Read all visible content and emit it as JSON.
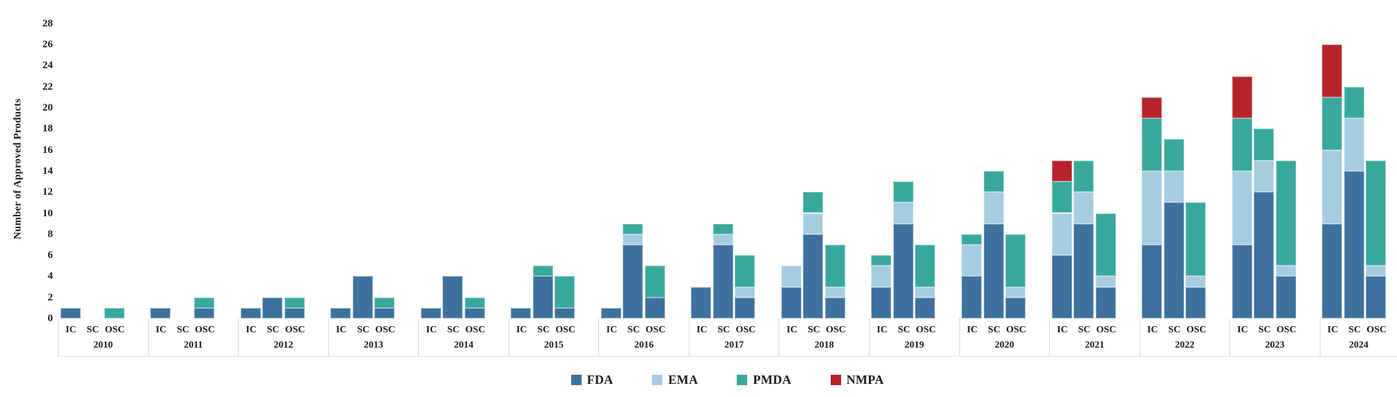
{
  "chart_data": {
    "type": "bar",
    "stacked": true,
    "grouped_by": "year",
    "title": "",
    "xlabel": "",
    "ylabel": "Number of Approved Products",
    "ylim": [
      0,
      28
    ],
    "ytick_step": 2,
    "ytick_labels": [
      "0",
      "2",
      "4",
      "6",
      "8",
      "10",
      "12",
      "14",
      "16",
      "18",
      "20",
      "22",
      "24",
      "26",
      "28"
    ],
    "grid": false,
    "legend_position": "bottom-center",
    "categories": [
      "IC",
      "SC",
      "OSC"
    ],
    "series_order_bottom_to_top": [
      "FDA",
      "EMA",
      "PMDA",
      "NMPA"
    ],
    "series": [
      {
        "name": "FDA",
        "color": "#3E719D"
      },
      {
        "name": "EMA",
        "color": "#A6CCE2"
      },
      {
        "name": "PMDA",
        "color": "#39A89C"
      },
      {
        "name": "NMPA",
        "color": "#B7232A"
      }
    ],
    "years": [
      {
        "year": "2010",
        "values": [
          [
            1,
            0,
            0,
            0
          ],
          [
            0,
            0,
            0,
            0
          ],
          [
            0,
            0,
            1,
            0
          ]
        ]
      },
      {
        "year": "2011",
        "values": [
          [
            1,
            0,
            0,
            0
          ],
          [
            0,
            0,
            0,
            0
          ],
          [
            1,
            0,
            1,
            0
          ]
        ]
      },
      {
        "year": "2012",
        "values": [
          [
            1,
            0,
            0,
            0
          ],
          [
            2,
            0,
            0,
            0
          ],
          [
            1,
            0,
            1,
            0
          ]
        ]
      },
      {
        "year": "2013",
        "values": [
          [
            1,
            0,
            0,
            0
          ],
          [
            4,
            0,
            0,
            0
          ],
          [
            1,
            0,
            1,
            0
          ]
        ]
      },
      {
        "year": "2014",
        "values": [
          [
            1,
            0,
            0,
            0
          ],
          [
            4,
            0,
            0,
            0
          ],
          [
            1,
            0,
            1,
            0
          ]
        ]
      },
      {
        "year": "2015",
        "values": [
          [
            1,
            0,
            0,
            0
          ],
          [
            4,
            0,
            1,
            0
          ],
          [
            1,
            0,
            3,
            0
          ]
        ]
      },
      {
        "year": "2016",
        "values": [
          [
            1,
            0,
            0,
            0
          ],
          [
            7,
            1,
            1,
            0
          ],
          [
            2,
            0,
            3,
            0
          ]
        ]
      },
      {
        "year": "2017",
        "values": [
          [
            3,
            0,
            0,
            0
          ],
          [
            7,
            1,
            1,
            0
          ],
          [
            2,
            1,
            3,
            0
          ]
        ]
      },
      {
        "year": "2018",
        "values": [
          [
            3,
            2,
            0,
            0
          ],
          [
            8,
            2,
            2,
            0
          ],
          [
            2,
            1,
            4,
            0
          ]
        ]
      },
      {
        "year": "2019",
        "values": [
          [
            3,
            2,
            1,
            0
          ],
          [
            9,
            2,
            2,
            0
          ],
          [
            2,
            1,
            4,
            0
          ]
        ]
      },
      {
        "year": "2020",
        "values": [
          [
            4,
            3,
            1,
            0
          ],
          [
            9,
            3,
            2,
            0
          ],
          [
            2,
            1,
            5,
            0
          ]
        ]
      },
      {
        "year": "2021",
        "values": [
          [
            6,
            4,
            3,
            2
          ],
          [
            9,
            3,
            3,
            0
          ],
          [
            3,
            1,
            6,
            0
          ]
        ]
      },
      {
        "year": "2022",
        "values": [
          [
            7,
            7,
            5,
            2
          ],
          [
            11,
            3,
            3,
            0
          ],
          [
            3,
            1,
            7,
            0
          ]
        ]
      },
      {
        "year": "2023",
        "values": [
          [
            7,
            7,
            5,
            4
          ],
          [
            12,
            3,
            3,
            0
          ],
          [
            4,
            1,
            10,
            0
          ]
        ]
      },
      {
        "year": "2024",
        "values": [
          [
            9,
            7,
            5,
            5
          ],
          [
            14,
            5,
            3,
            0
          ],
          [
            4,
            1,
            10,
            0
          ]
        ]
      }
    ],
    "axis_color": "#d9d9d9",
    "text_color": "#1b1b1b"
  }
}
